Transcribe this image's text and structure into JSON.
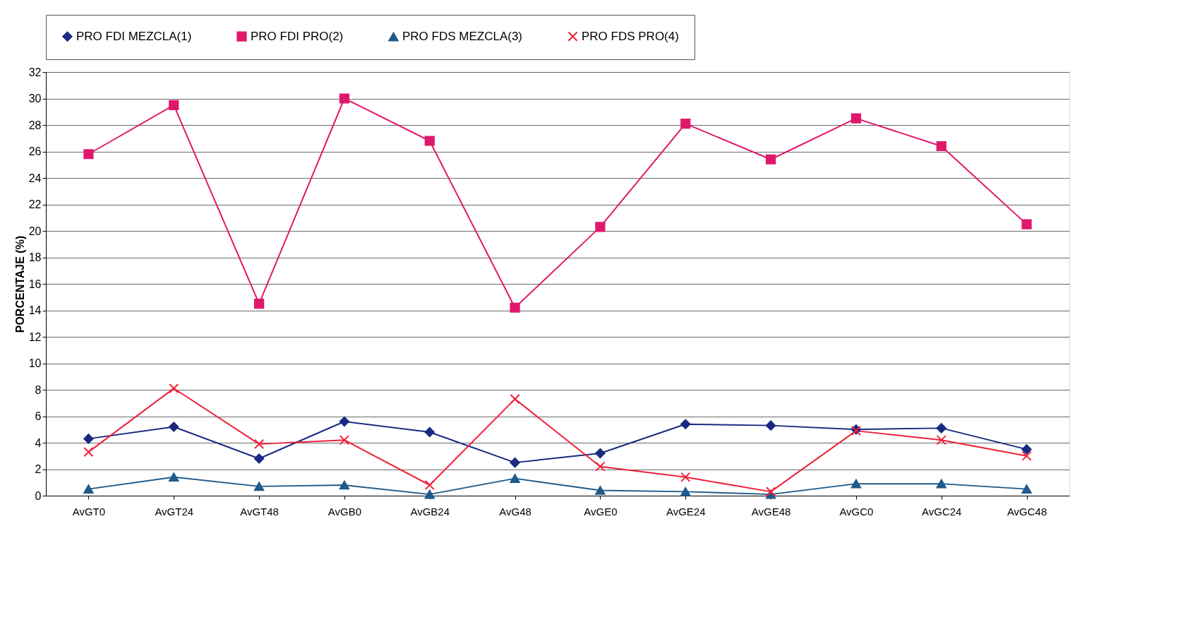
{
  "chart_data": {
    "type": "line",
    "ylabel": "PORCENTAJE (%)",
    "categories": [
      "AvGT0",
      "AvGT24",
      "AvGT48",
      "AvGB0",
      "AvGB24",
      "AvG48",
      "AvGE0",
      "AvGE24",
      "AvGE48",
      "AvGC0",
      "AvGC24",
      "AvGC48"
    ],
    "series": [
      {
        "name": "PRO FDI MEZCLA(1)",
        "color": "#1a2a80",
        "marker": "diamond",
        "values": [
          4.3,
          5.2,
          2.8,
          5.6,
          4.8,
          2.5,
          3.2,
          5.4,
          5.3,
          5.0,
          5.1,
          3.5
        ]
      },
      {
        "name": "PRO FDI PRO(2)",
        "color": "#e0186c",
        "marker": "square",
        "values": [
          25.8,
          29.5,
          14.5,
          30.0,
          26.8,
          14.2,
          20.3,
          28.1,
          25.4,
          28.5,
          26.4,
          20.5
        ]
      },
      {
        "name": "PRO FDS MEZCLA(3)",
        "color": "#1f5a8a",
        "marker": "triangle",
        "values": [
          0.5,
          1.4,
          0.7,
          0.8,
          0.1,
          1.3,
          0.4,
          0.3,
          0.1,
          0.9,
          0.9,
          0.5
        ]
      },
      {
        "name": "PRO FDS PRO(4)",
        "color": "#f0203a",
        "marker": "cross",
        "values": [
          3.3,
          8.1,
          3.9,
          4.2,
          0.8,
          7.3,
          2.2,
          1.4,
          0.3,
          4.9,
          4.2,
          3.0
        ]
      }
    ],
    "ylim": [
      0,
      32
    ],
    "yticks": [
      0,
      2,
      4,
      6,
      8,
      10,
      12,
      14,
      16,
      18,
      20,
      22,
      24,
      26,
      28,
      30,
      32
    ],
    "grid": "y",
    "legend": "top",
    "line_style": "solid"
  }
}
